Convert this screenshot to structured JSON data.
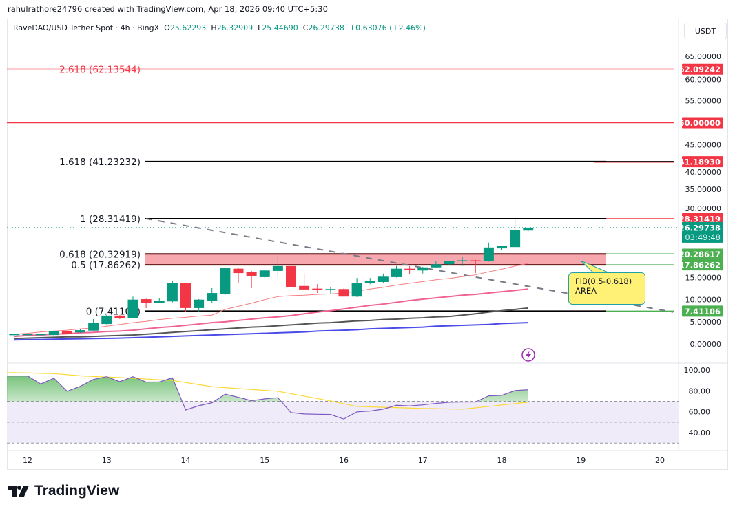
{
  "credit": "rahulrathore24796 created with TradingView.com, Apr 18, 2026 09:40 UTC+5:30",
  "legend": {
    "symbol": "RaveDAO/USD Tether Spot · 4h · BingX",
    "o_label": "O",
    "o": "25.62293",
    "h_label": "H",
    "h": "26.32909",
    "l_label": "L",
    "l": "25.44690",
    "c_label": "C",
    "c": "26.29738",
    "change": "+0.63076 (+2.46%)"
  },
  "currency": "USDT",
  "logo": "TradingView",
  "annotation": {
    "text": "FIB(0.5-0.618)\nAREA",
    "price": 19.0
  },
  "colors": {
    "up": "#089981",
    "down": "#f23645",
    "fib_zone": "#f7a8ae",
    "green_tag": "#4caf50",
    "red_tag": "#f23645",
    "rsi": "#7e57c2",
    "rsi_ma": "#fdd835",
    "rsi_band": "#efebf8"
  },
  "chart_data": {
    "type": "candlestick",
    "timeframe": "4h",
    "start": "Apr 11 20:00",
    "ylim": [
      0,
      65
    ],
    "y_ticks": [
      "65.00000",
      "60.00000",
      "55.00000",
      "45.00000",
      "40.00000",
      "35.00000",
      "30.00000",
      "15.00000",
      "10.00000",
      "5.00000",
      "0.00000"
    ],
    "y_tick_values": [
      65,
      60,
      55,
      45,
      40,
      35,
      30,
      15,
      10,
      5,
      0
    ],
    "x_ticks": [
      "12",
      "13",
      "14",
      "15",
      "16",
      "17",
      "18",
      "19",
      "20"
    ],
    "candles": [
      [
        2.2,
        2.3,
        2.1,
        2.2
      ],
      [
        2.2,
        2.3,
        2.1,
        2.2
      ],
      [
        2.2,
        2.3,
        2.1,
        2.2
      ],
      [
        2.0,
        3.1,
        1.9,
        2.8
      ],
      [
        2.8,
        2.9,
        2.2,
        2.3
      ],
      [
        2.6,
        3.3,
        2.5,
        3.1
      ],
      [
        3.0,
        5.6,
        2.9,
        4.7
      ],
      [
        4.5,
        6.5,
        4.4,
        6.4
      ],
      [
        6.4,
        6.5,
        5.6,
        5.9
      ],
      [
        5.9,
        10.7,
        5.8,
        10.0
      ],
      [
        10.1,
        10.2,
        8.1,
        9.3
      ],
      [
        9.3,
        10.3,
        9.2,
        9.8
      ],
      [
        9.6,
        14.3,
        9.4,
        13.7
      ],
      [
        13.7,
        13.8,
        7.3,
        8.1
      ],
      [
        8.1,
        10.1,
        7.3,
        10.0
      ],
      [
        9.8,
        12.6,
        9.3,
        11.5
      ],
      [
        11.2,
        17.2,
        11.1,
        17.1
      ],
      [
        17.0,
        17.1,
        13.8,
        16.0
      ],
      [
        16.2,
        16.5,
        12.6,
        15.3
      ],
      [
        15.1,
        16.8,
        15.0,
        16.6
      ],
      [
        16.5,
        19.8,
        15.1,
        17.6
      ],
      [
        17.6,
        18.5,
        12.7,
        12.8
      ],
      [
        13.1,
        15.9,
        12.2,
        12.3
      ],
      [
        12.5,
        13.5,
        11.5,
        12.4
      ],
      [
        12.2,
        12.9,
        11.4,
        12.4
      ],
      [
        12.4,
        12.5,
        10.7,
        10.7
      ],
      [
        10.7,
        14.9,
        10.6,
        13.8
      ],
      [
        13.7,
        14.9,
        13.5,
        14.2
      ],
      [
        14.0,
        15.9,
        13.8,
        15.2
      ],
      [
        15.1,
        17.6,
        15.0,
        17.0
      ],
      [
        17.0,
        17.6,
        15.7,
        16.8
      ],
      [
        16.6,
        17.4,
        15.9,
        17.3
      ],
      [
        17.3,
        18.8,
        17.2,
        18.0
      ],
      [
        18.0,
        18.8,
        17.9,
        18.7
      ],
      [
        18.8,
        19.6,
        17.6,
        18.9
      ],
      [
        18.9,
        19.0,
        16.0,
        18.8
      ],
      [
        18.7,
        22.9,
        18.6,
        21.8
      ],
      [
        21.6,
        22.2,
        21.3,
        22.1
      ],
      [
        21.9,
        28.3,
        21.8,
        25.7
      ],
      [
        25.62293,
        26.32909,
        25.4469,
        26.29738
      ]
    ],
    "moving_averages": [
      {
        "color": "#f77c80",
        "values": [
          2.2,
          2.4,
          2.7,
          2.9,
          3.1,
          3.4,
          3.6,
          4.0,
          4.4,
          4.8,
          5.1,
          5.5,
          5.8,
          6.0,
          6.3,
          6.5,
          7.8,
          8.5,
          9.2,
          10.0,
          10.7,
          10.9,
          11.0,
          11.2,
          11.3,
          11.5,
          11.9,
          12.4,
          12.8,
          13.3,
          13.7,
          14.1,
          14.5,
          14.8,
          15.2,
          15.6,
          16.3,
          16.9,
          17.6,
          18.2
        ]
      },
      {
        "color": "#f06292",
        "values": [
          1.7,
          1.9,
          2.0,
          2.2,
          2.3,
          2.5,
          2.6,
          2.8,
          2.9,
          3.1,
          3.4,
          3.7,
          3.9,
          4.2,
          4.5,
          4.8,
          5.0,
          5.3,
          5.6,
          5.9,
          6.1,
          6.4,
          6.8,
          7.2,
          7.5,
          7.9,
          8.3,
          8.7,
          9.0,
          9.4,
          9.8,
          10.1,
          10.4,
          10.7,
          11.0,
          11.2,
          11.5,
          11.8,
          12.1,
          12.4
        ]
      },
      {
        "color": "#555555",
        "values": [
          1.2,
          1.3,
          1.4,
          1.5,
          1.6,
          1.6,
          1.7,
          1.8,
          1.9,
          2.0,
          2.2,
          2.4,
          2.6,
          2.8,
          3.0,
          3.2,
          3.4,
          3.6,
          3.8,
          3.9,
          4.1,
          4.3,
          4.5,
          4.7,
          4.8,
          5.0,
          5.2,
          5.3,
          5.5,
          5.6,
          5.8,
          5.9,
          6.1,
          6.2,
          6.5,
          6.8,
          7.2,
          7.5,
          7.8,
          8.1
        ]
      },
      {
        "color": "#4a4ae8",
        "values": [
          0.9,
          0.95,
          1.0,
          1.05,
          1.1,
          1.15,
          1.2,
          1.25,
          1.3,
          1.4,
          1.5,
          1.6,
          1.7,
          1.8,
          1.9,
          2.0,
          2.1,
          2.2,
          2.3,
          2.4,
          2.5,
          2.6,
          2.7,
          2.9,
          3.0,
          3.1,
          3.2,
          3.4,
          3.5,
          3.6,
          3.7,
          3.8,
          4.0,
          4.1,
          4.2,
          4.3,
          4.4,
          4.6,
          4.7,
          4.8
        ]
      }
    ],
    "fib_levels": [
      {
        "label": "2.618 (62.13544)",
        "price": 62.13544,
        "color": "#f23645"
      },
      {
        "label": "1.618 (41.23232)",
        "price": 41.23232,
        "color": "#000000"
      },
      {
        "label": "1 (28.31419)",
        "price": 28.31419,
        "color": "#000000"
      },
      {
        "label": "0.618 (20.32919)",
        "price": 20.32919,
        "color": "#000000"
      },
      {
        "label": "0.5 (17.86262)",
        "price": 17.86262,
        "color": "#000000"
      },
      {
        "label": "0 (7.41106)",
        "price": 7.41106,
        "color": "#000000"
      }
    ],
    "horizontal_line": {
      "price": 50.0,
      "color": "#f23645"
    },
    "trendline": {
      "from": {
        "time": "Apr 13 12:00",
        "price": 28.31419
      },
      "to": {
        "time": "Apr 20 04:00",
        "price": 7.2
      }
    },
    "price_tags": [
      {
        "text": "62.09242",
        "price": 62.09242,
        "color": "#f23645"
      },
      {
        "text": "50.00000",
        "price": 50.0,
        "color": "#f23645"
      },
      {
        "text": "41.18930",
        "price": 41.1893,
        "color": "#f23645"
      },
      {
        "text": "28.31419",
        "price": 28.31419,
        "color": "#f23645"
      },
      {
        "text": "20.28617",
        "price": 20.28617,
        "color": "#4caf50"
      },
      {
        "text": "17.86262",
        "price": 17.86262,
        "color": "#4caf50"
      },
      {
        "text": "7.41106",
        "price": 7.41106,
        "color": "#4caf50"
      }
    ],
    "last_price": {
      "text": "26.29738",
      "countdown": "03:49:48",
      "price": 26.29738
    },
    "rsi": {
      "ylim": [
        20,
        100
      ],
      "y_ticks": [
        "100.00",
        "80.00",
        "60.00",
        "40.00"
      ],
      "y_tick_values": [
        100,
        80,
        60,
        40
      ],
      "bands": [
        70,
        50,
        30
      ],
      "values": [
        94.3,
        94.3,
        86.6,
        92.1,
        79.6,
        84.4,
        91.0,
        93.6,
        88.8,
        93.6,
        88.4,
        88.6,
        92.5,
        61.8,
        65.8,
        68.6,
        76.8,
        73.9,
        70.6,
        72.4,
        73.5,
        59.2,
        57.9,
        57.6,
        57.4,
        53.1,
        59.9,
        60.7,
        62.5,
        66.2,
        65.6,
        66.6,
        68.0,
        69.1,
        69.3,
        69.3,
        75.2,
        75.7,
        80.3,
        81.1
      ],
      "ma_values": [
        97.5,
        97.2,
        96.8,
        96.5,
        95.5,
        94.5,
        93.8,
        93.3,
        92.8,
        92.1,
        91.4,
        90.7,
        90.0,
        88.0,
        86.0,
        84.0,
        83.1,
        82.2,
        81.4,
        80.5,
        79.6,
        77.3,
        75.0,
        72.7,
        70.4,
        67.7,
        65.1,
        64.7,
        64.3,
        64.0,
        63.6,
        63.2,
        63.0,
        62.7,
        62.5,
        63.8,
        65.1,
        66.5,
        67.8,
        69.1
      ]
    }
  }
}
